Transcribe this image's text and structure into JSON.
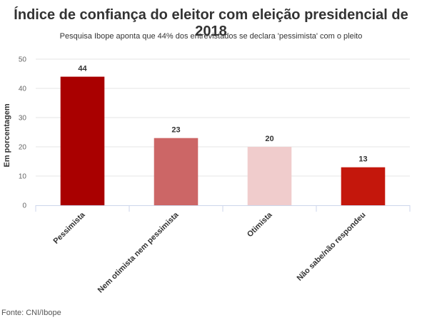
{
  "header": {
    "title": "Índice de confiança do eleitor com eleição presidencial de 2018",
    "subtitle": "Pesquisa Ibope aponta que 44% dos entrevistados se declara 'pessimista' com o pleito"
  },
  "footer": {
    "source": "Fonte: CNI/Ibope"
  },
  "chart_data": {
    "type": "bar",
    "title": "Índice de confiança do eleitor com eleição presidencial de 2018",
    "subtitle": "Pesquisa Ibope aponta que 44% dos entrevistados se declara 'pessimista' com o pleito",
    "xlabel": "",
    "ylabel": "Em porcentagem",
    "categories": [
      "Pessimista",
      "Nem otimista nem pessimista",
      "Otimista",
      "Não sabe/não respondeu"
    ],
    "values": [
      44,
      23,
      20,
      13
    ],
    "colors": [
      "#a90000",
      "#cc6666",
      "#f0cccc",
      "#c4170c"
    ],
    "ylim": [
      0,
      50
    ],
    "yticks": [
      0,
      10,
      20,
      30,
      40,
      50
    ],
    "grid": true,
    "data_labels": true,
    "legend": "none"
  }
}
